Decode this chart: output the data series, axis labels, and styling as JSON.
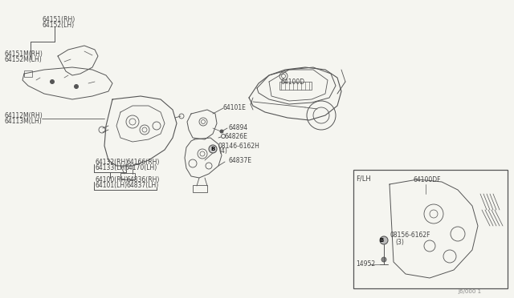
{
  "background_color": "#f5f5f0",
  "line_color": "#555555",
  "text_color": "#444444",
  "labels": {
    "top_label1": "64151(RH)",
    "top_label2": "64152(LH)",
    "mid_label1": "64151M(RH)",
    "mid_label2": "64152M(LH)",
    "ll1": "64112M(RH)",
    "ll2": "64113M(LH)",
    "lm1": "64132(RH)",
    "lm2": "64133(LH)",
    "lm3": "64166(RH)",
    "lm4": "64170(LH)",
    "lb1": "64100(RH)",
    "lb2": "64101(LH)",
    "lb3": "64836(RH)",
    "lb4": "64837(LH)",
    "c1": "64101E",
    "c2": "64894",
    "c3": "64826E",
    "c4": "08146-6162H",
    "c4b": "(4)",
    "c5": "64837E",
    "car_label": "64100D",
    "inset_title": "F/LH",
    "i1": "64100DF",
    "i2": "08156-6162F",
    "i2b": "(3)",
    "i3": "14952",
    "footer": "J6/000 1"
  }
}
